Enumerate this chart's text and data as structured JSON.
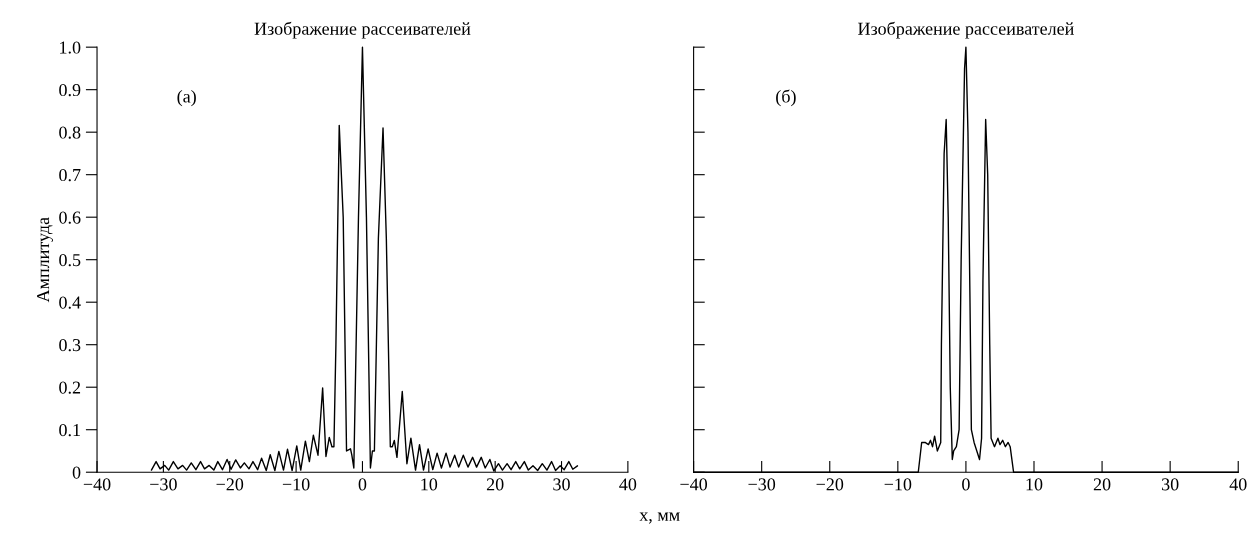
{
  "chart_data": [
    {
      "type": "line",
      "title": "Изображение рассеивателей",
      "ylabel": "Амплитуда",
      "xlabel": "x, мм",
      "annotations": [
        "(а)"
      ],
      "xlim": [
        -40,
        40
      ],
      "xticks": [
        {
          "value": -40,
          "label": "−40"
        },
        {
          "value": -30,
          "label": "−30"
        },
        {
          "value": -20,
          "label": "−20"
        },
        {
          "value": -10,
          "label": "−10"
        },
        0,
        10,
        20,
        30,
        40
      ],
      "ylim": [
        0,
        1.0
      ],
      "yticks": [
        0,
        0.1,
        0.2,
        0.3,
        0.4,
        0.5,
        0.6,
        0.7,
        0.8,
        0.9,
        {
          "value": 1.0,
          "label": "1.0"
        }
      ],
      "grid": false,
      "legend": false,
      "series": [
        {
          "color": "#000000",
          "x": [
            -31.8,
            -31.1,
            -30.5,
            -29.8,
            -29.2,
            -28.5,
            -27.8,
            -27.1,
            -26.5,
            -25.8,
            -25.1,
            -24.4,
            -23.8,
            -23.1,
            -22.4,
            -21.8,
            -21.1,
            -20.4,
            -19.8,
            -19.1,
            -18.4,
            -17.8,
            -17.1,
            -16.5,
            -15.8,
            -15.2,
            -14.5,
            -13.9,
            -13.2,
            -12.6,
            -11.9,
            -11.3,
            -10.6,
            -9.9,
            -9.3,
            -8.6,
            -8.0,
            -7.4,
            -6.7,
            -6.0,
            -5.5,
            -5.0,
            -4.6,
            -4.3,
            -4.0,
            -3.5,
            -2.9,
            -2.4,
            -1.8,
            -1.6,
            -1.3,
            -0.6,
            0,
            0.6,
            1.2,
            1.5,
            1.8,
            2.4,
            3.1,
            3.6,
            4.2,
            4.5,
            4.8,
            5.2,
            6.0,
            6.7,
            7.3,
            8.0,
            8.6,
            9.2,
            9.9,
            10.6,
            11.25,
            11.9,
            12.6,
            13.2,
            13.9,
            14.5,
            15.2,
            15.9,
            16.6,
            17.2,
            17.9,
            18.5,
            19.2,
            19.8,
            20.5,
            21.1,
            21.8,
            22.4,
            23.1,
            23.7,
            24.4,
            25.0,
            25.7,
            26.4,
            27.1,
            27.8,
            28.5,
            29.1,
            29.8,
            30.4,
            31.1,
            31.7,
            32.4
          ],
          "values": [
            0.005,
            0.025,
            0.008,
            0.016,
            0.005,
            0.025,
            0.008,
            0.016,
            0.005,
            0.022,
            0.006,
            0.025,
            0.008,
            0.016,
            0.005,
            0.025,
            0.006,
            0.03,
            0.007,
            0.029,
            0.01,
            0.022,
            0.008,
            0.025,
            0.006,
            0.033,
            0.004,
            0.041,
            0.004,
            0.049,
            0.005,
            0.054,
            0.004,
            0.062,
            0.005,
            0.073,
            0.025,
            0.087,
            0.04,
            0.198,
            0.037,
            0.082,
            0.06,
            0.06,
            0.3,
            0.816,
            0.6,
            0.05,
            0.055,
            0.04,
            0.01,
            0.6,
            1.0,
            0.6,
            0.01,
            0.05,
            0.05,
            0.55,
            0.81,
            0.55,
            0.06,
            0.06,
            0.075,
            0.035,
            0.19,
            0.02,
            0.08,
            0.005,
            0.065,
            0.005,
            0.055,
            0.006,
            0.045,
            0.01,
            0.045,
            0.012,
            0.04,
            0.012,
            0.04,
            0.012,
            0.035,
            0.012,
            0.035,
            0.01,
            0.03,
            0.003,
            0.02,
            0.005,
            0.02,
            0.006,
            0.025,
            0.008,
            0.025,
            0.005,
            0.015,
            0.004,
            0.02,
            0.005,
            0.025,
            0.004,
            0.015,
            0.006,
            0.025,
            0.007,
            0.015
          ]
        }
      ]
    },
    {
      "type": "line",
      "title": "Изображение рассеивателей",
      "annotations": [
        "(б)"
      ],
      "tick_labels": "x",
      "xlim": [
        -40,
        40
      ],
      "xticks": [
        {
          "value": -40,
          "label": "−40"
        },
        {
          "value": -30,
          "label": "−30"
        },
        {
          "value": -20,
          "label": "−20"
        },
        {
          "value": -10,
          "label": "−10"
        },
        0,
        10,
        20,
        30,
        40
      ],
      "ylim": [
        0,
        1.0
      ],
      "yticks": [
        0,
        0.1,
        0.2,
        0.3,
        0.4,
        0.5,
        0.6,
        0.7,
        0.8,
        0.9,
        1.0
      ],
      "grid": false,
      "legend": false,
      "series": [
        {
          "color": "#000000",
          "x": [
            -40,
            -8.3,
            -7.0,
            -6.5,
            -6.0,
            -5.5,
            -5.2,
            -4.9,
            -4.6,
            -4.2,
            -3.7,
            -3.6,
            -3.2,
            -2.9,
            -2.6,
            -2.3,
            -2.0,
            -1.8,
            -1.4,
            -1.0,
            -0.7,
            -0.2,
            0,
            0.3,
            0.6,
            0.8,
            1.2,
            1.6,
            2.0,
            2.3,
            2.5,
            2.9,
            3.2,
            3.5,
            3.7,
            4.2,
            4.7,
            5.0,
            5.4,
            5.8,
            6.2,
            6.5,
            7.0,
            8.0,
            40
          ],
          "values": [
            0,
            0,
            0,
            0.07,
            0.07,
            0.065,
            0.075,
            0.06,
            0.085,
            0.05,
            0.07,
            0.3,
            0.75,
            0.83,
            0.6,
            0.2,
            0.03,
            0.05,
            0.06,
            0.1,
            0.5,
            0.95,
            1.0,
            0.8,
            0.4,
            0.1,
            0.07,
            0.05,
            0.03,
            0.08,
            0.45,
            0.83,
            0.7,
            0.3,
            0.08,
            0.06,
            0.08,
            0.065,
            0.075,
            0.06,
            0.07,
            0.06,
            0,
            0,
            0
          ]
        }
      ]
    }
  ]
}
